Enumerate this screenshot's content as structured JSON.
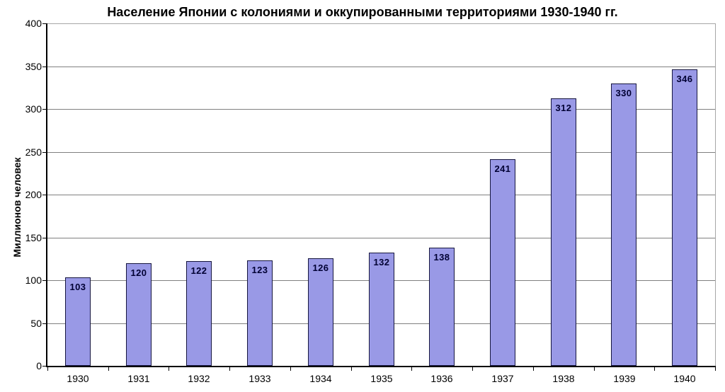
{
  "chart_data": {
    "type": "bar",
    "title": "Население Японии с колониями и оккупированными территориями 1930-1940 гг.",
    "xlabel": "",
    "ylabel": "Миллионов человек",
    "categories": [
      "1930",
      "1931",
      "1932",
      "1933",
      "1934",
      "1935",
      "1936",
      "1937",
      "1938",
      "1939",
      "1940"
    ],
    "values": [
      103,
      120,
      122,
      123,
      126,
      132,
      138,
      241,
      312,
      330,
      346
    ],
    "ylim": [
      0,
      400
    ],
    "ytick_step": 50,
    "ytick_labels": [
      "0",
      "50",
      "100",
      "150",
      "200",
      "250",
      "300",
      "350",
      "400"
    ],
    "grid": true,
    "legend_position": "none",
    "colors": {
      "bar_fill": "#9999E6",
      "bar_border": "#16163F",
      "bar_label": "#000033",
      "gridline": "#808080",
      "axis_line": "#000000",
      "plot_border": "#A6A6A6",
      "tick_mark": "#000000",
      "text": "#000000",
      "background": "#FFFFFF"
    }
  }
}
